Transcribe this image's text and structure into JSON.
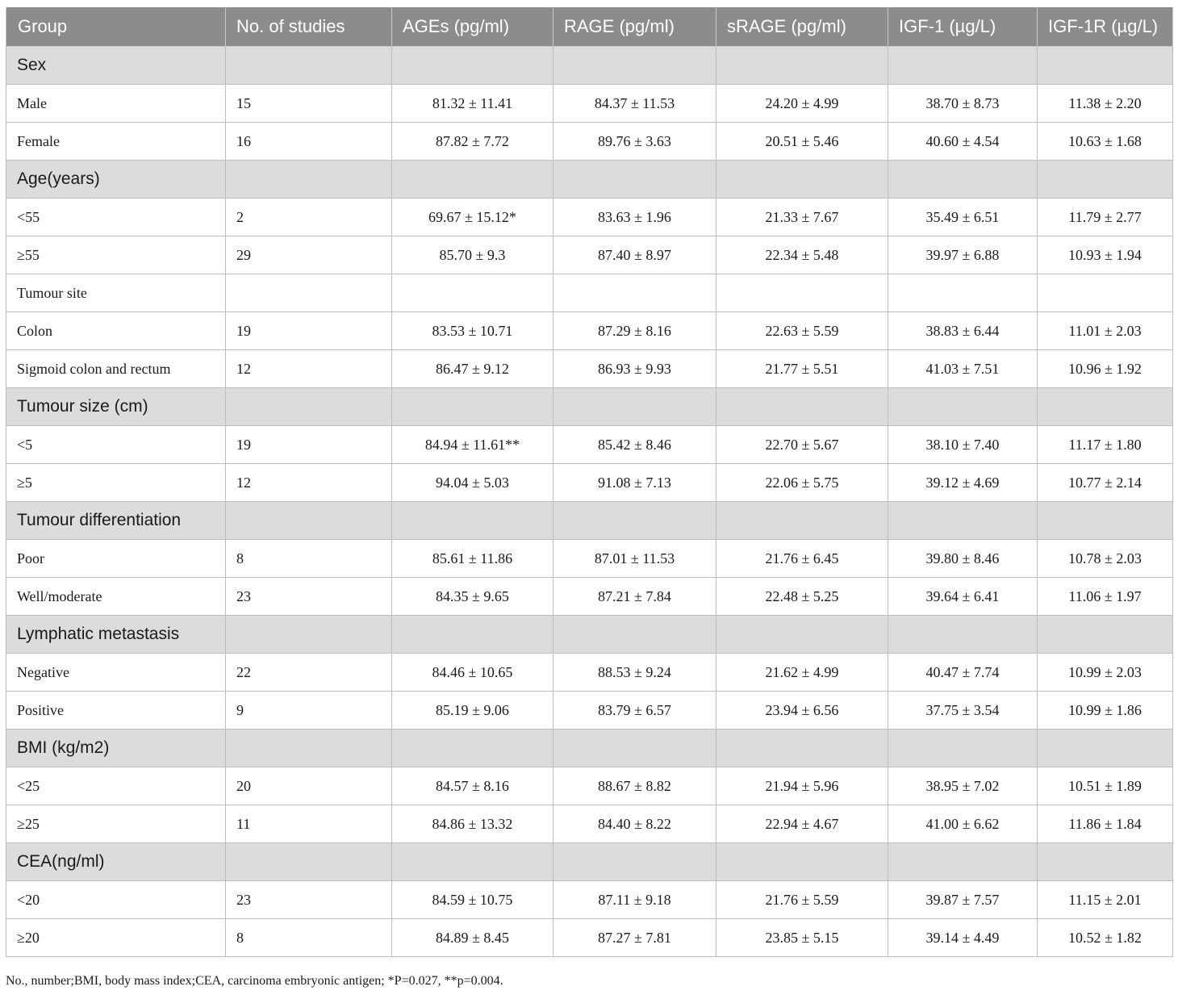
{
  "table": {
    "headers": [
      "Group",
      "No. of studies",
      "AGEs (pg/ml)",
      "RAGE (pg/ml)",
      "sRAGE (pg/ml)",
      "IGF-1 (µg/L)",
      "IGF-1R (µg/L)"
    ],
    "rows": [
      {
        "type": "section",
        "label": "Sex"
      },
      {
        "type": "data",
        "cells": [
          "Male",
          "15",
          "81.32 ± 11.41",
          "84.37 ± 11.53",
          "24.20 ± 4.99",
          "38.70 ± 8.73",
          "11.38 ± 2.20"
        ]
      },
      {
        "type": "data",
        "cells": [
          "Female",
          "16",
          "87.82 ± 7.72",
          "89.76 ± 3.63",
          "20.51 ± 5.46",
          "40.60 ± 4.54",
          "10.63 ± 1.68"
        ]
      },
      {
        "type": "section",
        "label": "Age(years)"
      },
      {
        "type": "data",
        "cells": [
          "<55",
          "2",
          "69.67 ± 15.12*",
          "83.63 ± 1.96",
          "21.33 ± 7.67",
          "35.49 ± 6.51",
          "11.79 ± 2.77"
        ]
      },
      {
        "type": "data",
        "cells": [
          "≥55",
          "29",
          "85.70 ± 9.3",
          "87.40 ± 8.97",
          "22.34 ± 5.48",
          "39.97 ± 6.88",
          "10.93 ± 1.94"
        ]
      },
      {
        "type": "data",
        "cells": [
          "Tumour site",
          "",
          "",
          "",
          "",
          "",
          ""
        ]
      },
      {
        "type": "data",
        "cells": [
          "Colon",
          "19",
          "83.53 ± 10.71",
          "87.29 ± 8.16",
          "22.63 ± 5.59",
          "38.83 ± 6.44",
          "11.01 ± 2.03"
        ]
      },
      {
        "type": "data",
        "cells": [
          "Sigmoid colon and rectum",
          "12",
          "86.47 ± 9.12",
          "86.93 ± 9.93",
          "21.77 ± 5.51",
          "41.03 ± 7.51",
          "10.96 ± 1.92"
        ]
      },
      {
        "type": "section",
        "label": "Tumour size (cm)"
      },
      {
        "type": "data",
        "cells": [
          "<5",
          "19",
          "84.94 ± 11.61**",
          "85.42 ± 8.46",
          "22.70 ± 5.67",
          "38.10 ± 7.40",
          "11.17 ± 1.80"
        ]
      },
      {
        "type": "data",
        "cells": [
          "≥5",
          "12",
          "94.04 ± 5.03",
          "91.08 ± 7.13",
          "22.06 ± 5.75",
          "39.12 ± 4.69",
          "10.77 ± 2.14"
        ]
      },
      {
        "type": "section",
        "label": "Tumour differentiation"
      },
      {
        "type": "data",
        "cells": [
          "Poor",
          "8",
          "85.61 ± 11.86",
          "87.01 ± 11.53",
          "21.76 ± 6.45",
          "39.80 ± 8.46",
          "10.78 ± 2.03"
        ]
      },
      {
        "type": "data",
        "cells": [
          "Well/moderate",
          "23",
          "84.35 ± 9.65",
          "87.21 ± 7.84",
          "22.48 ± 5.25",
          "39.64 ± 6.41",
          "11.06 ± 1.97"
        ]
      },
      {
        "type": "section",
        "label": "Lymphatic metastasis"
      },
      {
        "type": "data",
        "cells": [
          "Negative",
          "22",
          "84.46 ± 10.65",
          "88.53 ± 9.24",
          "21.62 ± 4.99",
          "40.47 ± 7.74",
          "10.99 ± 2.03"
        ]
      },
      {
        "type": "data",
        "cells": [
          "Positive",
          "9",
          "85.19 ± 9.06",
          "83.79 ± 6.57",
          "23.94 ± 6.56",
          "37.75 ± 3.54",
          "10.99 ± 1.86"
        ]
      },
      {
        "type": "section",
        "label": "BMI (kg/m2)"
      },
      {
        "type": "data",
        "cells": [
          "<25",
          "20",
          "84.57 ± 8.16",
          "88.67 ± 8.82",
          "21.94 ± 5.96",
          "38.95 ± 7.02",
          "10.51 ± 1.89"
        ]
      },
      {
        "type": "data",
        "cells": [
          "≥25",
          "11",
          "84.86 ± 13.32",
          "84.40 ± 8.22",
          "22.94 ± 4.67",
          "41.00 ± 6.62",
          "11.86 ± 1.84"
        ]
      },
      {
        "type": "section",
        "label": "CEA(ng/ml)"
      },
      {
        "type": "data",
        "cells": [
          "<20",
          "23",
          "84.59 ± 10.75",
          "87.11 ± 9.18",
          "21.76 ± 5.59",
          "39.87 ± 7.57",
          "11.15 ± 2.01"
        ]
      },
      {
        "type": "data",
        "cells": [
          "≥20",
          "8",
          "84.89 ± 8.45",
          "87.27 ± 7.81",
          "23.85 ± 5.15",
          "39.14 ± 4.49",
          "10.52 ± 1.82"
        ]
      }
    ]
  },
  "footnote": "No., number;BMI, body mass index;CEA, carcinoma embryonic antigen; *P=0.027, **p=0.004.",
  "colors": {
    "header_bg": "#8c8c8c",
    "header_text": "#ffffff",
    "section_bg": "#dcdcdc",
    "border": "#bdbdbd"
  }
}
